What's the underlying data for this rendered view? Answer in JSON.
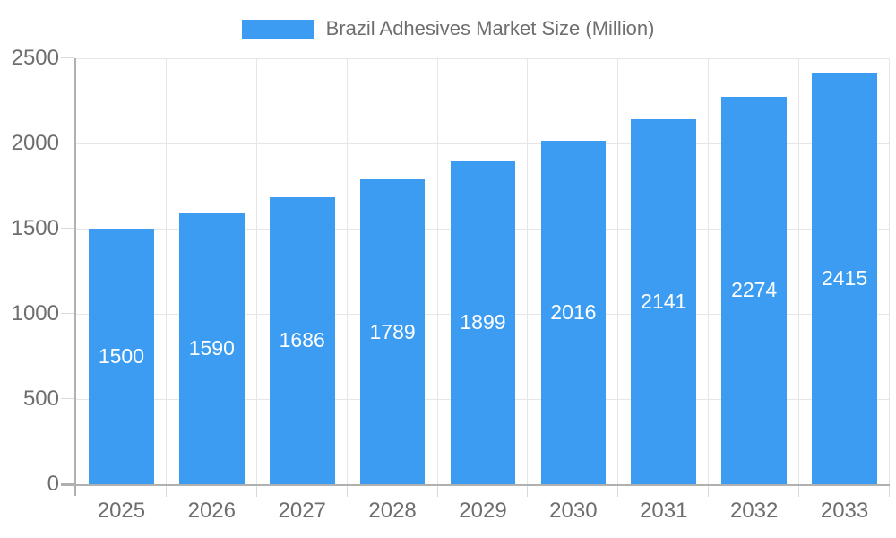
{
  "chart_data": {
    "type": "bar",
    "title": "Brazil Adhesives Market Size (Million)",
    "categories": [
      "2025",
      "2026",
      "2027",
      "2028",
      "2029",
      "2030",
      "2031",
      "2032",
      "2033"
    ],
    "values": [
      1500,
      1590,
      1686,
      1789,
      1899,
      2016,
      2141,
      2274,
      2415
    ],
    "series": [
      {
        "name": "Brazil Adhesives Market Size (Million)",
        "values": [
          1500,
          1590,
          1686,
          1789,
          1899,
          2016,
          2141,
          2274,
          2415
        ]
      }
    ],
    "xlabel": "",
    "ylabel": "",
    "ylim": [
      0,
      2500
    ],
    "yticks": [
      0,
      500,
      1000,
      1500,
      2000,
      2500
    ],
    "grid": "horizontal and vertical light gray gridlines",
    "legend_position": "top-center",
    "value_label_position": "inside-center"
  },
  "legend": {
    "label": "Brazil Adhesives Market Size (Million)"
  },
  "colors": {
    "bar": "#3b9cf2",
    "axis_line": "#b0b0b0",
    "gridline": "#e6e6e6",
    "tick": "#d9d9d9",
    "axis_text": "#6e6e6e",
    "legend_text": "#6e6e6e",
    "value_text": "#ffffff",
    "background": "#ffffff"
  }
}
